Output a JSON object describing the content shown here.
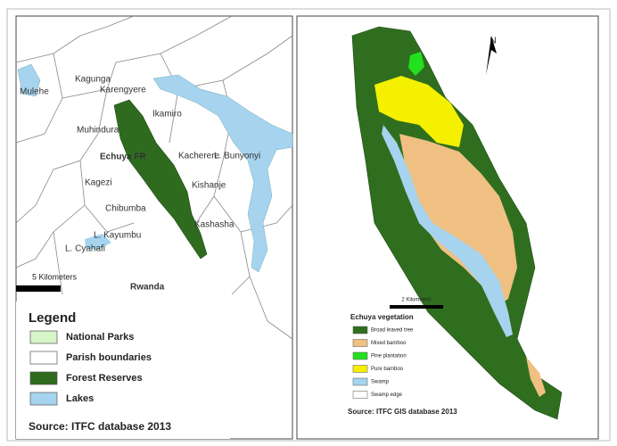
{
  "left_map": {
    "places": [
      "Mulehe",
      "Kagunga",
      "Karengyere",
      "Ikamiro",
      "Muhindura",
      "Echuya FR",
      "Kacherere",
      "L. Bunyonyi",
      "Kagezi",
      "Kishanje",
      "Chibumba",
      "Kashasha",
      "L. Kayumbu",
      "L. Cyahafi",
      "Rwanda"
    ],
    "scale_label": "5 Kilometers",
    "legend": {
      "title": "Legend",
      "items": [
        {
          "label": "National Parks",
          "color": "#d6f5c8"
        },
        {
          "label": "Parish boundaries",
          "color": "#ffffff"
        },
        {
          "label": "Forest Reserves",
          "color": "#2e6b1e"
        },
        {
          "label": "Lakes",
          "color": "#a6d4ee"
        }
      ]
    },
    "source": "Source: ITFC database 2013"
  },
  "right_map": {
    "north": "N",
    "scale_label": "2 Kilometers",
    "legend": {
      "title": "Echuya vegetation",
      "items": [
        {
          "label": "Broad leaved tree",
          "color": "#2f6e1f"
        },
        {
          "label": "Mixed bamboo",
          "color": "#efc081"
        },
        {
          "label": "Pine plantation",
          "color": "#22e01e"
        },
        {
          "label": "Pure bamboo",
          "color": "#f4f000"
        },
        {
          "label": "Swamp",
          "color": "#a6d4ee"
        },
        {
          "label": "Swamp edge",
          "color": "#ffffff"
        }
      ]
    },
    "source": "Source: ITFC GIS database 2013"
  }
}
